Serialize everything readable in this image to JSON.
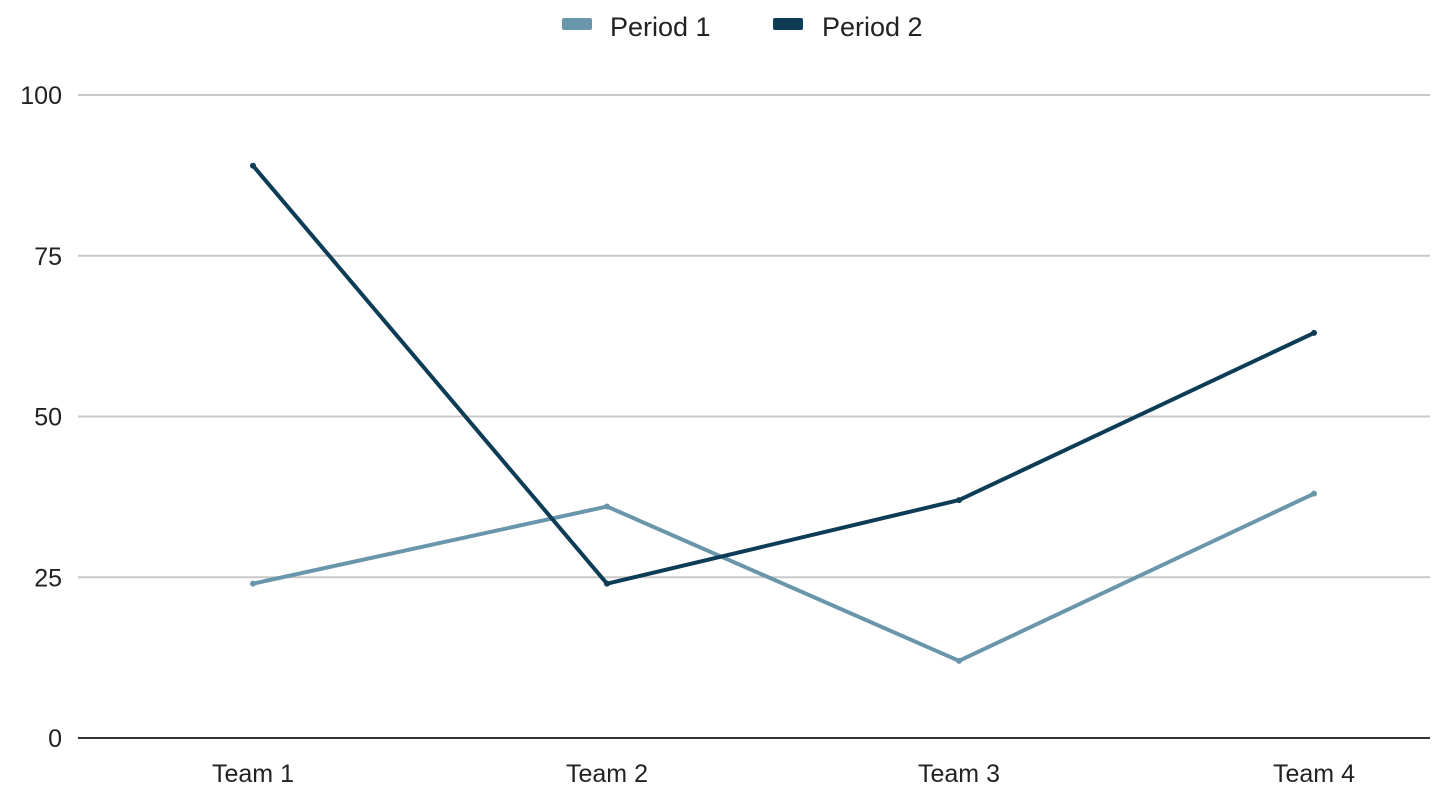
{
  "chart_data": {
    "type": "line",
    "title": "",
    "xlabel": "",
    "ylabel": "",
    "categories": [
      "Team 1",
      "Team 2",
      "Team 3",
      "Team 4"
    ],
    "ylim": [
      0,
      100
    ],
    "yticks": [
      "0",
      "25",
      "50",
      "75",
      "100"
    ],
    "grid": true,
    "legend_position": "top",
    "series": [
      {
        "name": "Period 1",
        "color": "#6a96ab",
        "values": [
          24,
          36,
          12,
          38
        ]
      },
      {
        "name": "Period 2",
        "color": "#0d3d56",
        "values": [
          89,
          24,
          37,
          63
        ]
      }
    ]
  }
}
